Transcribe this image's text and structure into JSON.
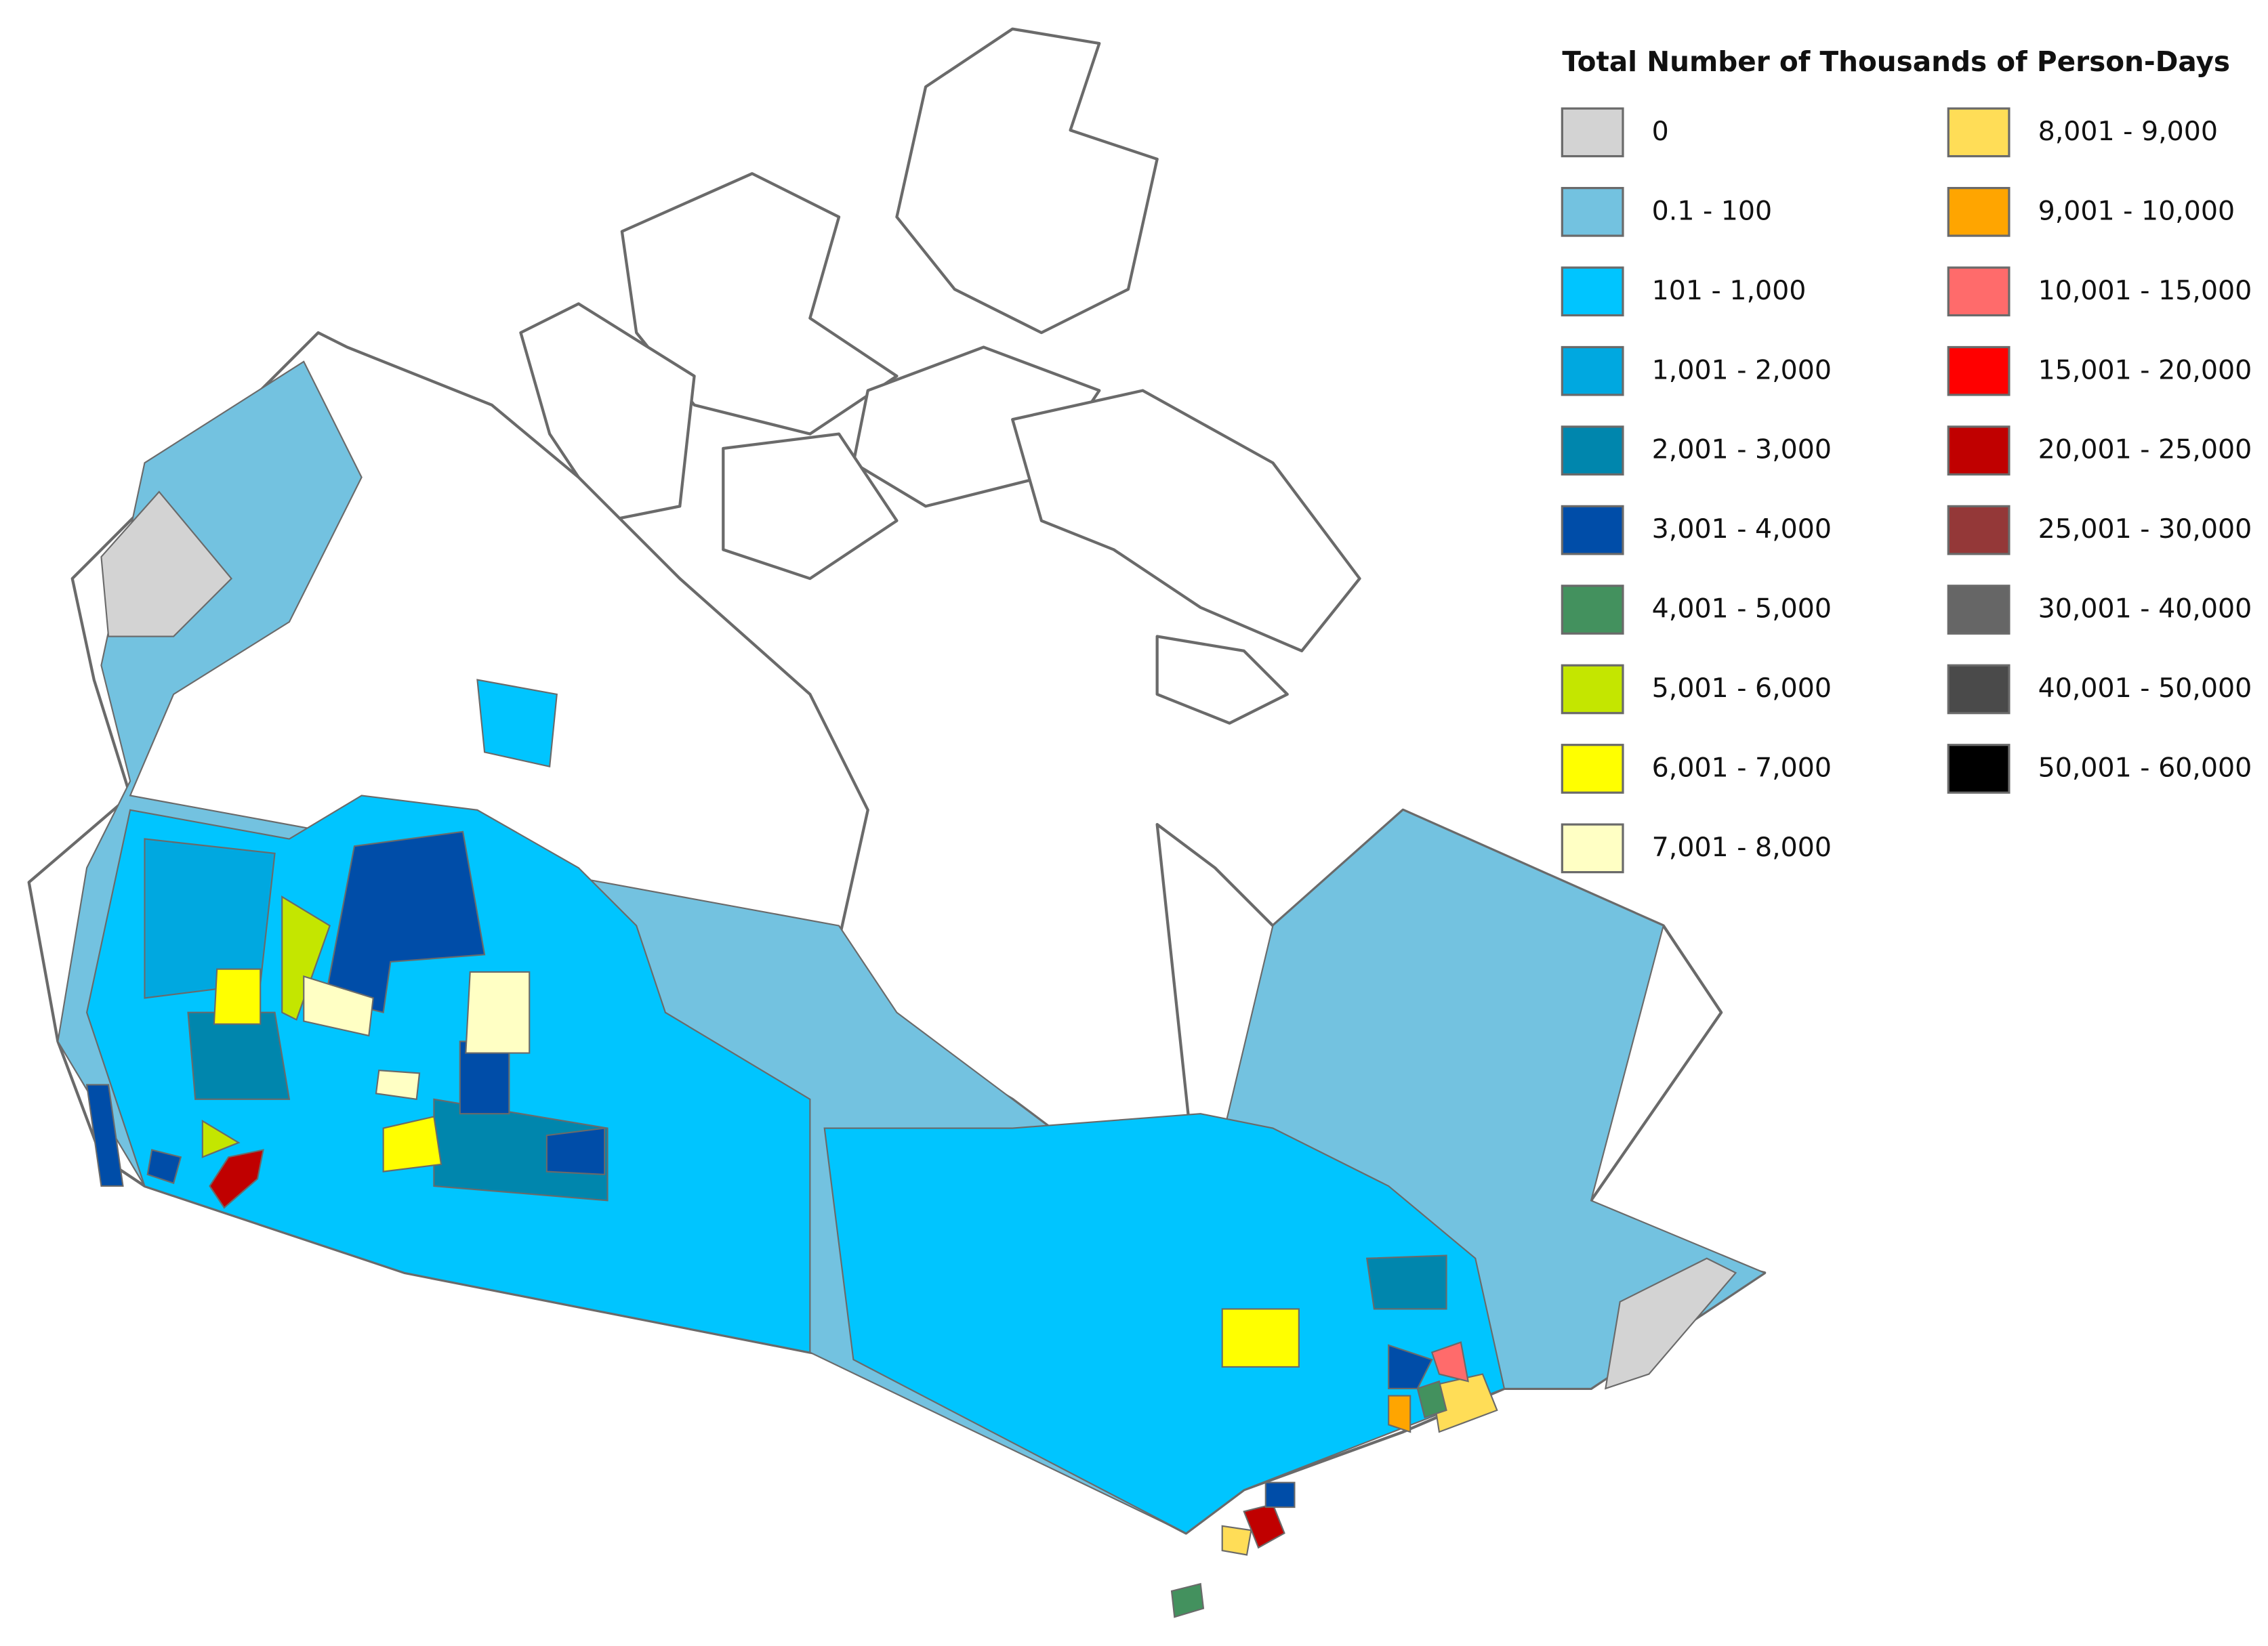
{
  "legend": {
    "title": "Total Number of Thousands of Person-Days",
    "items": [
      {
        "label": "0",
        "color": "#d3d3d3"
      },
      {
        "label": "0.1 - 100",
        "color": "#73c2e0"
      },
      {
        "label": "101 - 1,000",
        "color": "#00c5ff"
      },
      {
        "label": "1,001 - 2,000",
        "color": "#00a8e0"
      },
      {
        "label": "2,001 - 3,000",
        "color": "#0086ad"
      },
      {
        "label": "3,001 - 4,000",
        "color": "#004da8"
      },
      {
        "label": "4,001 - 5,000",
        "color": "#43915e"
      },
      {
        "label": "5,001 - 6,000",
        "color": "#c4e600"
      },
      {
        "label": "6,001 - 7,000",
        "color": "#ffff00"
      },
      {
        "label": "7,001 - 8,000",
        "color": "#ffffc4"
      },
      {
        "label": "8,001 - 9,000",
        "color": "#ffdd57"
      },
      {
        "label": "9,001 - 10,000",
        "color": "#ffa500"
      },
      {
        "label": "10,001 - 15,000",
        "color": "#ff6b6b"
      },
      {
        "label": "15,001 - 20,000",
        "color": "#ff0000"
      },
      {
        "label": "20,001 - 25,000",
        "color": "#c00000"
      },
      {
        "label": "25,001 - 30,000",
        "color": "#943838"
      },
      {
        "label": "30,001 - 40,000",
        "color": "#666666"
      },
      {
        "label": "40,001 - 50,000",
        "color": "#4a4a4a"
      },
      {
        "label": "50,001 - 60,000",
        "color": "#000000"
      }
    ]
  }
}
